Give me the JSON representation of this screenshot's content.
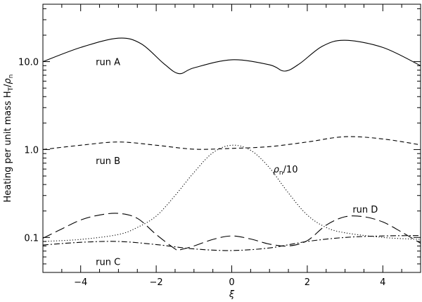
{
  "chart_data": {
    "type": "line",
    "title": "",
    "xlabel": "ξ",
    "ylabel_parts": {
      "main": "Heating per unit mass H",
      "sub1": "T",
      "slash": "/",
      "rho": "ρ",
      "sub2": "n"
    },
    "xlim": [
      -5,
      5
    ],
    "ylim": [
      0.04,
      45
    ],
    "yscale": "log",
    "grid": false,
    "x_ticks": [
      -4,
      -2,
      0,
      2,
      4
    ],
    "x_tick_labels": [
      "−4",
      "−2",
      "0",
      "2",
      "4"
    ],
    "y_ticks": [
      0.1,
      1.0,
      10.0
    ],
    "y_tick_labels": [
      "0.1",
      "1.0",
      "10.0"
    ],
    "series": [
      {
        "key": "A",
        "style": "solid",
        "x": [
          -5,
          -4,
          -3,
          -2.4,
          -1.8,
          -1.4,
          -1.0,
          0,
          1.0,
          1.4,
          1.8,
          2.4,
          3,
          4,
          5
        ],
        "y": [
          10.0,
          14.5,
          18.5,
          16.0,
          9.5,
          7.3,
          8.5,
          10.5,
          9.2,
          7.8,
          9.5,
          15.0,
          17.5,
          14.5,
          9.0
        ]
      },
      {
        "key": "B",
        "style": "dashed",
        "x": [
          -5,
          -4,
          -3,
          -2,
          -1,
          0,
          1,
          2,
          3,
          4,
          5
        ],
        "y": [
          1.0,
          1.12,
          1.22,
          1.12,
          1.01,
          1.03,
          1.08,
          1.22,
          1.4,
          1.32,
          1.13
        ]
      },
      {
        "key": "C",
        "style": "dashdot",
        "x": [
          -5,
          -4,
          -3,
          -2,
          -1,
          0,
          1,
          2,
          3,
          4,
          5
        ],
        "y": [
          0.082,
          0.088,
          0.09,
          0.083,
          0.074,
          0.071,
          0.076,
          0.09,
          0.1,
          0.104,
          0.105
        ]
      },
      {
        "key": "D",
        "style": "longdash",
        "x": [
          -5,
          -4.5,
          -4,
          -3.5,
          -3,
          -2.5,
          -2,
          -1.5,
          -1.4,
          -1,
          -0.5,
          0,
          0.5,
          1,
          1.5,
          2,
          2.5,
          3,
          3.5,
          4,
          4.5,
          5
        ],
        "y": [
          0.098,
          0.125,
          0.158,
          0.18,
          0.188,
          0.165,
          0.108,
          0.074,
          0.072,
          0.08,
          0.095,
          0.104,
          0.096,
          0.084,
          0.08,
          0.092,
          0.138,
          0.172,
          0.172,
          0.15,
          0.115,
          0.086
        ]
      },
      {
        "key": "rho",
        "style": "dotted",
        "x": [
          -5,
          -4,
          -3,
          -2.5,
          -2,
          -1.5,
          -1,
          -0.5,
          0,
          0.5,
          1,
          1.5,
          2,
          2.5,
          3,
          4,
          5
        ],
        "y": [
          0.09,
          0.095,
          0.108,
          0.13,
          0.175,
          0.3,
          0.55,
          0.92,
          1.12,
          0.98,
          0.62,
          0.32,
          0.18,
          0.13,
          0.113,
          0.1,
          0.095
        ]
      }
    ],
    "annotations": [
      {
        "key": "A",
        "text": "run A",
        "x": -3.6,
        "y": 10.0
      },
      {
        "key": "B",
        "text": "run B",
        "x": -3.6,
        "y": 0.75
      },
      {
        "key": "C",
        "text": "run C",
        "x": -3.6,
        "y": 0.053
      },
      {
        "key": "D",
        "text": "run D",
        "x": 3.2,
        "y": 0.21
      },
      {
        "key": "rho",
        "text_main": "ρ",
        "text_sub": "n",
        "text_tail": "/10",
        "x": 1.1,
        "y": 0.6
      }
    ]
  }
}
